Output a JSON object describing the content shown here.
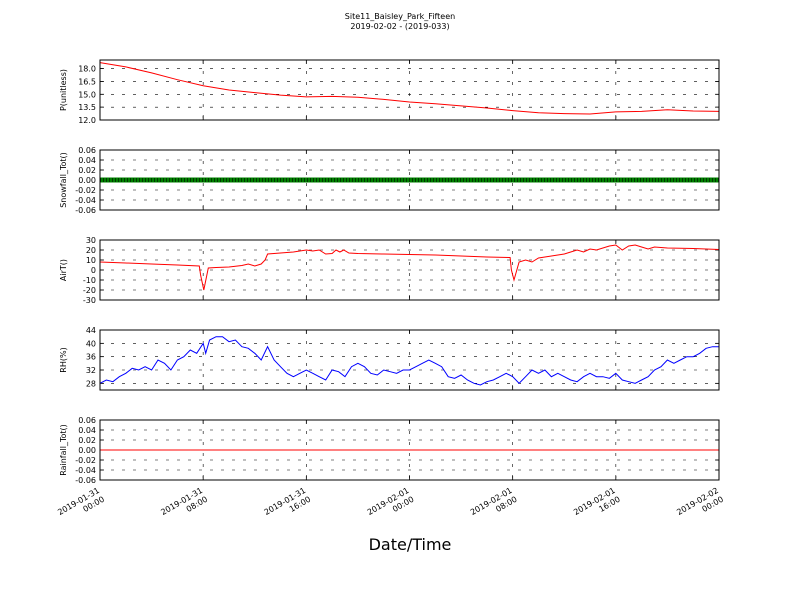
{
  "chart_data": {
    "type": "line",
    "title": "Site11_Baisley_Park_Fifteen",
    "subtitle": "2019-02-02 - (2019-033)",
    "xlabel": "Date/Time",
    "grid": true,
    "x_ticks": [
      {
        "t": 0,
        "line1": "2019-01-31",
        "line2": "00:00"
      },
      {
        "t": 8,
        "line1": "2019-01-31",
        "line2": "08:00"
      },
      {
        "t": 16,
        "line1": "2019-01-31",
        "line2": "16:00"
      },
      {
        "t": 24,
        "line1": "2019-02-01",
        "line2": "00:00"
      },
      {
        "t": 32,
        "line1": "2019-02-01",
        "line2": "08:00"
      },
      {
        "t": 40,
        "line1": "2019-02-01",
        "line2": "16:00"
      },
      {
        "t": 48,
        "line1": "2019-02-02",
        "line2": "00:00"
      }
    ],
    "xlim": [
      0,
      48
    ],
    "panels": [
      {
        "ylabel": "P(unitless)",
        "ylim": [
          12.0,
          19.0
        ],
        "yticks": [
          12.0,
          13.5,
          15.0,
          16.5,
          18.0
        ],
        "tick_decimals": 1,
        "color": "#ff0000",
        "style": "line",
        "points": [
          [
            0,
            18.7
          ],
          [
            2,
            18.2
          ],
          [
            4,
            17.5
          ],
          [
            6,
            16.7
          ],
          [
            8,
            16.0
          ],
          [
            10,
            15.5
          ],
          [
            12,
            15.2
          ],
          [
            14,
            14.9
          ],
          [
            16,
            14.7
          ],
          [
            18,
            14.75
          ],
          [
            20,
            14.65
          ],
          [
            22,
            14.4
          ],
          [
            24,
            14.1
          ],
          [
            26,
            13.9
          ],
          [
            28,
            13.65
          ],
          [
            30,
            13.4
          ],
          [
            32,
            13.1
          ],
          [
            34,
            12.85
          ],
          [
            36,
            12.75
          ],
          [
            38,
            12.7
          ],
          [
            40,
            12.95
          ],
          [
            42,
            13.0
          ],
          [
            44,
            13.2
          ],
          [
            46,
            13.05
          ],
          [
            48,
            13.0
          ]
        ]
      },
      {
        "ylabel": "Snowfall_Tot()",
        "ylim": [
          -0.06,
          0.06
        ],
        "yticks": [
          -0.06,
          -0.04,
          -0.02,
          0.0,
          0.02,
          0.04,
          0.06
        ],
        "tick_decimals": 2,
        "color": "#008000",
        "style": "markers",
        "points": [
          [
            0,
            0.0
          ],
          [
            48,
            0.0
          ]
        ]
      },
      {
        "ylabel": "AirT()",
        "ylim": [
          -30,
          30
        ],
        "yticks": [
          -30,
          -20,
          -10,
          0,
          10,
          20,
          30
        ],
        "tick_decimals": 0,
        "color": "#ff0000",
        "style": "line",
        "points": [
          [
            0,
            8
          ],
          [
            2,
            7
          ],
          [
            4,
            6
          ],
          [
            6,
            5
          ],
          [
            7.7,
            4
          ],
          [
            7.8,
            -5
          ],
          [
            8.05,
            -20
          ],
          [
            8.4,
            2
          ],
          [
            9,
            2.5
          ],
          [
            10,
            3
          ],
          [
            11,
            4.5
          ],
          [
            11.5,
            6
          ],
          [
            12,
            4
          ],
          [
            12.5,
            6
          ],
          [
            12.8,
            10
          ],
          [
            13,
            16
          ],
          [
            14,
            17
          ],
          [
            15,
            18
          ],
          [
            16,
            20
          ],
          [
            16.5,
            19
          ],
          [
            17,
            20
          ],
          [
            17.5,
            16
          ],
          [
            18,
            16.5
          ],
          [
            18.3,
            20
          ],
          [
            18.6,
            18
          ],
          [
            18.9,
            20
          ],
          [
            19.3,
            17
          ],
          [
            20,
            16.5
          ],
          [
            22,
            16
          ],
          [
            24,
            15.5
          ],
          [
            26,
            15
          ],
          [
            28,
            14
          ],
          [
            30,
            13
          ],
          [
            31.8,
            12.5
          ],
          [
            31.9,
            0
          ],
          [
            32.1,
            -10
          ],
          [
            32.5,
            8
          ],
          [
            33,
            10
          ],
          [
            33.5,
            8
          ],
          [
            34,
            12
          ],
          [
            35,
            14
          ],
          [
            36,
            16
          ],
          [
            36.5,
            18
          ],
          [
            37,
            20
          ],
          [
            37.5,
            18
          ],
          [
            38,
            21
          ],
          [
            38.5,
            20
          ],
          [
            39,
            22
          ],
          [
            39.5,
            24
          ],
          [
            40,
            25
          ],
          [
            40.5,
            20
          ],
          [
            41,
            24
          ],
          [
            41.5,
            25
          ],
          [
            42,
            23
          ],
          [
            42.5,
            21
          ],
          [
            43,
            23
          ],
          [
            44,
            22
          ],
          [
            46,
            21.5
          ],
          [
            48,
            20.5
          ]
        ]
      },
      {
        "ylabel": "RH(%)",
        "ylim": [
          26,
          44
        ],
        "yticks": [
          28,
          32,
          36,
          40,
          44
        ],
        "tick_decimals": 0,
        "color": "#0000ff",
        "style": "line",
        "points": [
          [
            0,
            28
          ],
          [
            0.5,
            29
          ],
          [
            1,
            28.5
          ],
          [
            1.5,
            30
          ],
          [
            2,
            31
          ],
          [
            2.5,
            32.5
          ],
          [
            3,
            32
          ],
          [
            3.5,
            33
          ],
          [
            4,
            32
          ],
          [
            4.5,
            35
          ],
          [
            5,
            34
          ],
          [
            5.5,
            32
          ],
          [
            6,
            35
          ],
          [
            6.5,
            36
          ],
          [
            7,
            38
          ],
          [
            7.5,
            37
          ],
          [
            8,
            40
          ],
          [
            8.2,
            37
          ],
          [
            8.5,
            41
          ],
          [
            9,
            42
          ],
          [
            9.5,
            42
          ],
          [
            10,
            40.5
          ],
          [
            10.5,
            41
          ],
          [
            11,
            39
          ],
          [
            11.5,
            38.5
          ],
          [
            12,
            37
          ],
          [
            12.5,
            35
          ],
          [
            13,
            39
          ],
          [
            13.5,
            35
          ],
          [
            14,
            33
          ],
          [
            14.5,
            31
          ],
          [
            15,
            30
          ],
          [
            15.5,
            31
          ],
          [
            16,
            32
          ],
          [
            16.5,
            31
          ],
          [
            17,
            30
          ],
          [
            17.5,
            29
          ],
          [
            18,
            32
          ],
          [
            18.5,
            31.5
          ],
          [
            19,
            30
          ],
          [
            19.5,
            33
          ],
          [
            20,
            34
          ],
          [
            20.5,
            33
          ],
          [
            21,
            31
          ],
          [
            21.5,
            30.5
          ],
          [
            22,
            32
          ],
          [
            22.5,
            31.5
          ],
          [
            23,
            31
          ],
          [
            23.5,
            32
          ],
          [
            24,
            32
          ],
          [
            24.5,
            33
          ],
          [
            25,
            34
          ],
          [
            25.5,
            35
          ],
          [
            26,
            34
          ],
          [
            26.5,
            33
          ],
          [
            27,
            30
          ],
          [
            27.5,
            29.5
          ],
          [
            28,
            30.5
          ],
          [
            28.5,
            29
          ],
          [
            29,
            28
          ],
          [
            29.5,
            27.5
          ],
          [
            30,
            28.5
          ],
          [
            30.5,
            29
          ],
          [
            31,
            30
          ],
          [
            31.5,
            31
          ],
          [
            32,
            30
          ],
          [
            32.5,
            28
          ],
          [
            33,
            30
          ],
          [
            33.5,
            32
          ],
          [
            34,
            31
          ],
          [
            34.5,
            32
          ],
          [
            35,
            30
          ],
          [
            35.5,
            31
          ],
          [
            36,
            30
          ],
          [
            36.5,
            29
          ],
          [
            37,
            28.5
          ],
          [
            37.5,
            30
          ],
          [
            38,
            31
          ],
          [
            38.5,
            30
          ],
          [
            39,
            30
          ],
          [
            39.5,
            29.5
          ],
          [
            40,
            31
          ],
          [
            40.5,
            29
          ],
          [
            41,
            28.5
          ],
          [
            41.5,
            28
          ],
          [
            42,
            29
          ],
          [
            42.5,
            30
          ],
          [
            43,
            32
          ],
          [
            43.5,
            33
          ],
          [
            44,
            35
          ],
          [
            44.5,
            34
          ],
          [
            45,
            35
          ],
          [
            45.5,
            36
          ],
          [
            46,
            36
          ],
          [
            46.5,
            37
          ],
          [
            47,
            38.5
          ],
          [
            47.5,
            39
          ],
          [
            48,
            39
          ]
        ]
      },
      {
        "ylabel": "Rainfall_Tot()",
        "ylim": [
          -0.06,
          0.06
        ],
        "yticks": [
          -0.06,
          -0.04,
          -0.02,
          0.0,
          0.02,
          0.04,
          0.06
        ],
        "tick_decimals": 2,
        "color": "#ff0000",
        "style": "line",
        "points": [
          [
            0,
            0.0
          ],
          [
            48,
            0.0
          ]
        ]
      }
    ]
  }
}
